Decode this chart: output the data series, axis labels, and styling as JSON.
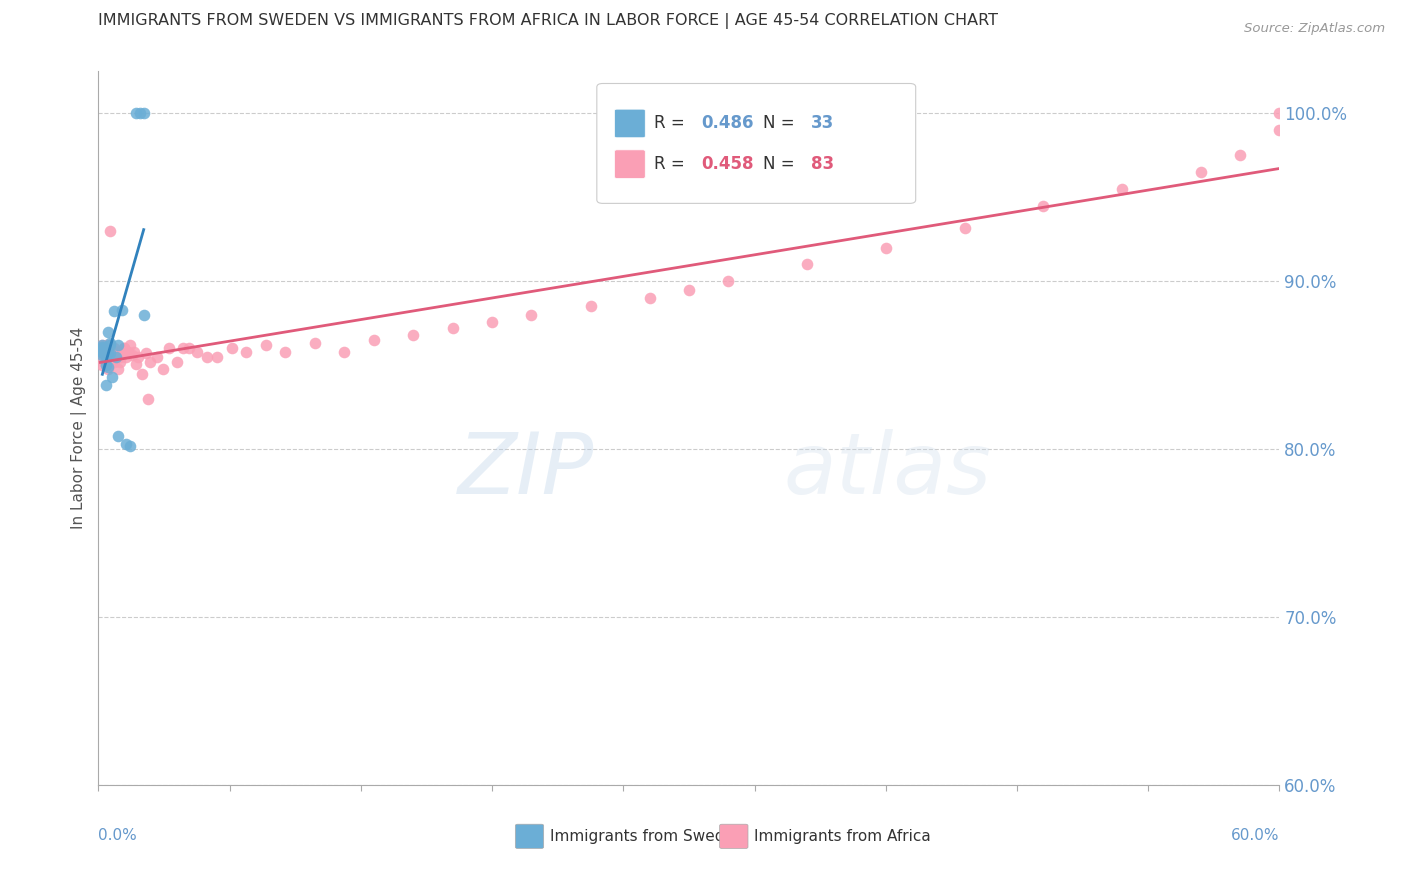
{
  "title": "IMMIGRANTS FROM SWEDEN VS IMMIGRANTS FROM AFRICA IN LABOR FORCE | AGE 45-54 CORRELATION CHART",
  "source": "Source: ZipAtlas.com",
  "ylabel_label": "In Labor Force | Age 45-54",
  "legend_label_sweden": "Immigrants from Sweden",
  "legend_label_africa": "Immigrants from Africa",
  "watermark_zip": "ZIP",
  "watermark_atlas": "atlas",
  "sweden_color": "#6baed6",
  "africa_color": "#fa9fb5",
  "sweden_trend_color": "#3182bd",
  "africa_trend_color": "#e05a7a",
  "axis_color": "#6699cc",
  "grid_color": "#cccccc",
  "sweden_r": "0.486",
  "sweden_n": "33",
  "africa_r": "0.458",
  "africa_n": "83",
  "sweden_x": [
    0.002,
    0.002,
    0.002,
    0.002,
    0.002,
    0.002,
    0.003,
    0.003,
    0.003,
    0.003,
    0.004,
    0.004,
    0.004,
    0.004,
    0.004,
    0.005,
    0.005,
    0.005,
    0.006,
    0.006,
    0.006,
    0.007,
    0.008,
    0.009,
    0.01,
    0.01,
    0.012,
    0.014,
    0.016,
    0.019,
    0.021,
    0.023,
    0.023
  ],
  "sweden_y": [
    0.856,
    0.858,
    0.86,
    0.862,
    0.858,
    0.861,
    0.858,
    0.86,
    0.859,
    0.857,
    0.838,
    0.856,
    0.857,
    0.85,
    0.855,
    0.858,
    0.849,
    0.87,
    0.862,
    0.863,
    0.857,
    0.843,
    0.882,
    0.855,
    0.862,
    0.808,
    0.883,
    0.803,
    0.802,
    1.0,
    1.0,
    1.0,
    0.88
  ],
  "africa_x": [
    0.001,
    0.001,
    0.002,
    0.002,
    0.002,
    0.002,
    0.003,
    0.003,
    0.003,
    0.004,
    0.004,
    0.004,
    0.004,
    0.005,
    0.005,
    0.005,
    0.006,
    0.006,
    0.006,
    0.007,
    0.007,
    0.007,
    0.008,
    0.008,
    0.009,
    0.01,
    0.01,
    0.011,
    0.012,
    0.013,
    0.014,
    0.015,
    0.016,
    0.017,
    0.018,
    0.019,
    0.02,
    0.022,
    0.024,
    0.026,
    0.03,
    0.033,
    0.036,
    0.04,
    0.043,
    0.046,
    0.05,
    0.055,
    0.06,
    0.068,
    0.075,
    0.085,
    0.095,
    0.11,
    0.125,
    0.14,
    0.16,
    0.18,
    0.2,
    0.22,
    0.25,
    0.28,
    0.3,
    0.32,
    0.36,
    0.4,
    0.44,
    0.48,
    0.52,
    0.56,
    0.58,
    0.6,
    0.6,
    0.006,
    0.008,
    0.005,
    0.003,
    0.004,
    0.007,
    0.009,
    0.011,
    0.013,
    0.025
  ],
  "africa_y": [
    0.858,
    0.86,
    0.855,
    0.862,
    0.85,
    0.858,
    0.86,
    0.855,
    0.852,
    0.855,
    0.857,
    0.862,
    0.85,
    0.855,
    0.848,
    0.858,
    0.856,
    0.862,
    0.93,
    0.858,
    0.853,
    0.855,
    0.852,
    0.86,
    0.855,
    0.858,
    0.848,
    0.852,
    0.856,
    0.86,
    0.855,
    0.858,
    0.862,
    0.856,
    0.858,
    0.851,
    0.855,
    0.845,
    0.857,
    0.852,
    0.855,
    0.848,
    0.86,
    0.852,
    0.86,
    0.86,
    0.858,
    0.855,
    0.855,
    0.86,
    0.858,
    0.862,
    0.858,
    0.863,
    0.858,
    0.865,
    0.868,
    0.872,
    0.876,
    0.88,
    0.885,
    0.89,
    0.895,
    0.9,
    0.91,
    0.92,
    0.932,
    0.945,
    0.955,
    0.965,
    0.975,
    0.99,
    1.0,
    0.856,
    0.855,
    0.85,
    0.858,
    0.852,
    0.855,
    0.858,
    0.855,
    0.86,
    0.83
  ],
  "xmin": 0.0,
  "xmax": 0.6,
  "ymin": 0.6,
  "ymax": 1.025
}
